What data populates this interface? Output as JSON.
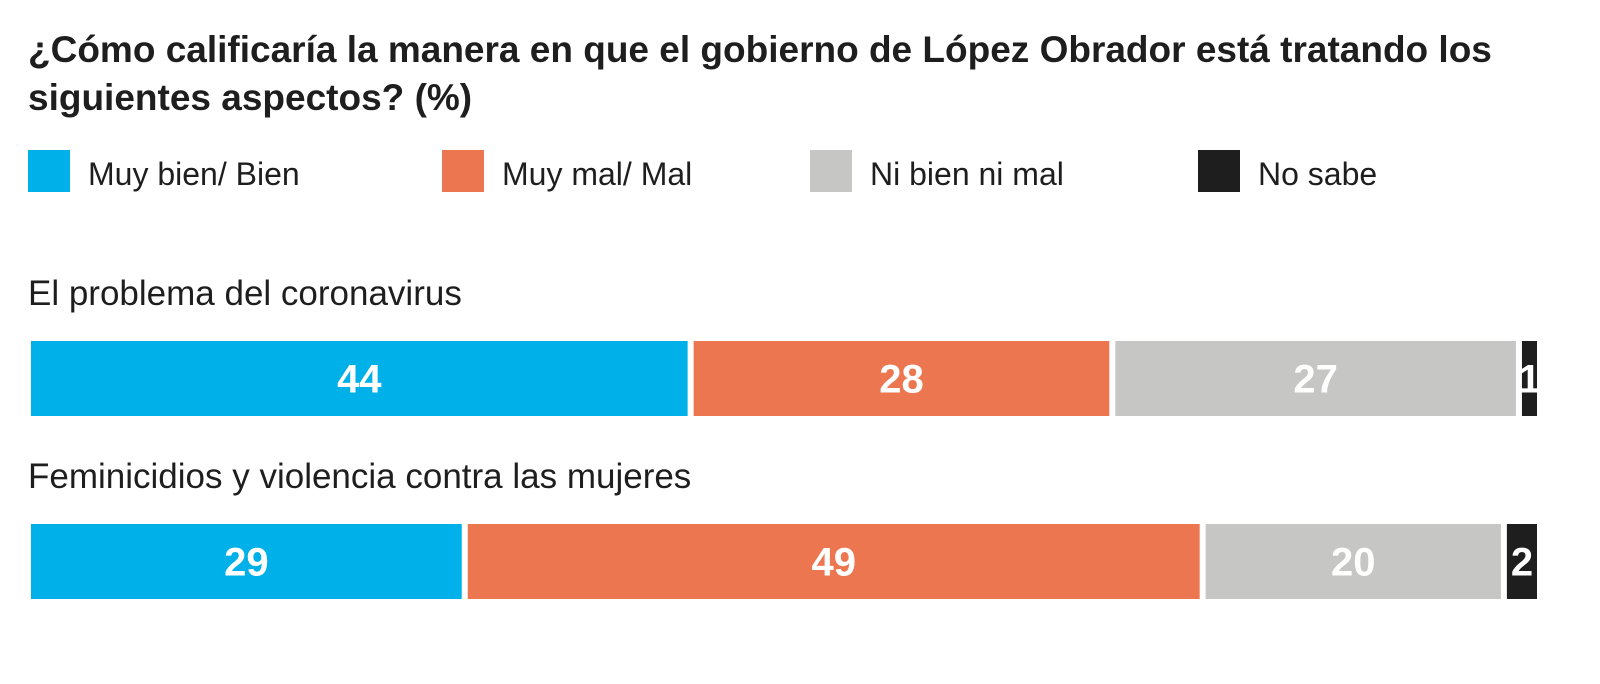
{
  "chart_data": {
    "type": "bar",
    "stacked": true,
    "orientation": "horizontal",
    "title": "¿Cómo calificaría la manera en que el gobierno de López Obrador está tratando los siguientes aspectos? (%)",
    "categories": [
      "El problema del coronavirus",
      "Feminicidios y violencia contra las mujeres"
    ],
    "series": [
      {
        "name": "Muy bien/ Bien",
        "color": "#00b0e8",
        "values": [
          44,
          29
        ]
      },
      {
        "name": "Muy mal/ Mal",
        "color": "#ec7650",
        "values": [
          28,
          49
        ]
      },
      {
        "name": "Ni bien ni mal",
        "color": "#c6c6c4",
        "values": [
          27,
          20
        ]
      },
      {
        "name": "No sabe",
        "color": "#1e1e1e",
        "values": [
          1,
          2
        ]
      }
    ],
    "xlim": [
      0,
      100
    ],
    "legend_position": "top",
    "grid": false
  }
}
